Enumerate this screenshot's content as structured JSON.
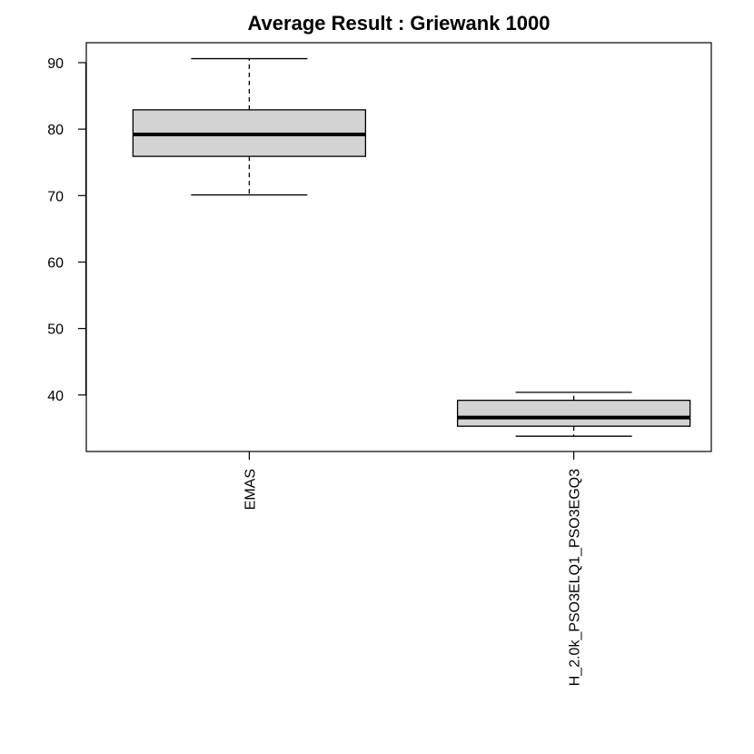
{
  "chart_data": {
    "type": "boxplot",
    "title": "Average Result : Griewank 1000",
    "xlabel": "",
    "ylabel": "",
    "ylim": [
      31.5,
      93
    ],
    "yticks": [
      40,
      50,
      60,
      70,
      80,
      90
    ],
    "categories": [
      "EMAS",
      "H_2.0k_PSO3ELQ1_PSO3EGQ3"
    ],
    "boxes": [
      {
        "min": 70.1,
        "q1": 75.9,
        "median": 79.2,
        "q3": 82.9,
        "max": 90.6
      },
      {
        "min": 33.8,
        "q1": 35.3,
        "median": 36.6,
        "q3": 39.2,
        "max": 40.4
      }
    ],
    "colors": {
      "box_fill": "#d3d3d3",
      "stroke": "#000000"
    }
  }
}
